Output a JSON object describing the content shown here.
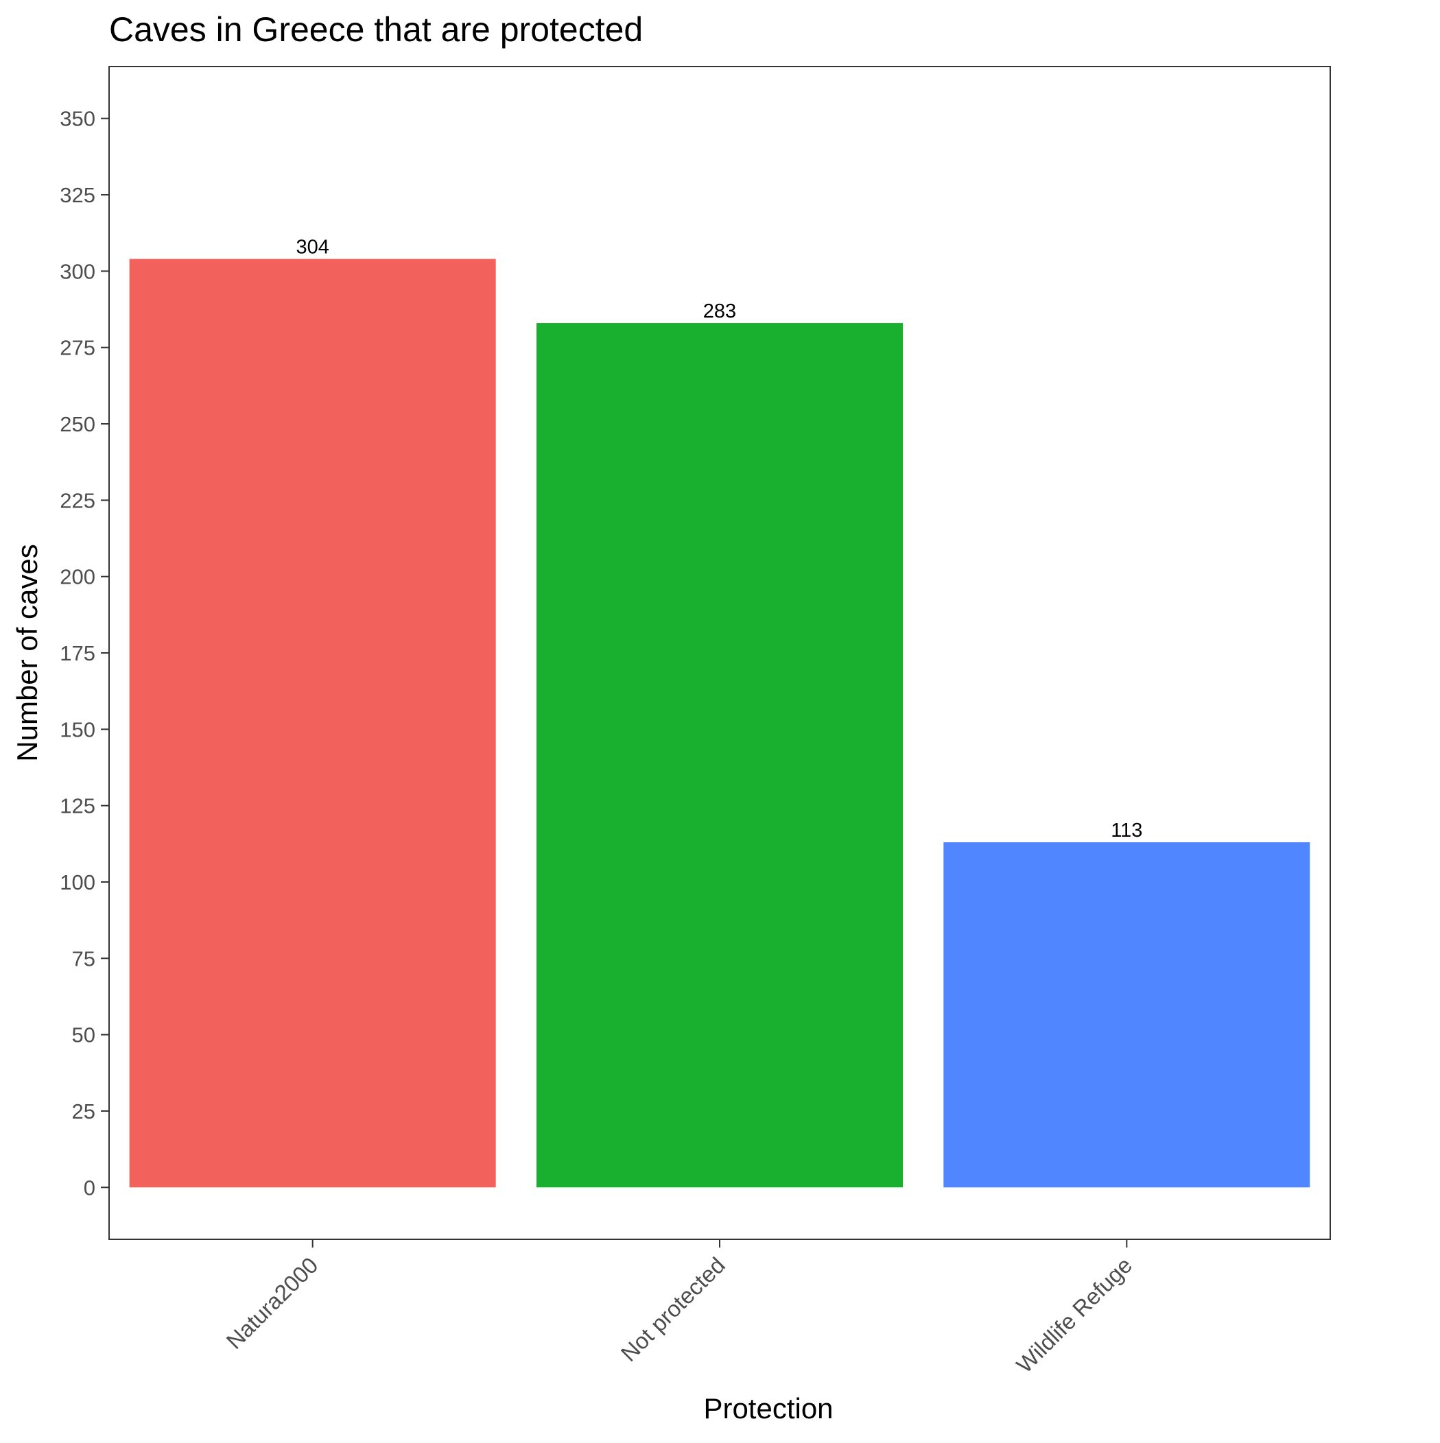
{
  "chart_data": {
    "type": "bar",
    "title": "Caves in Greece that are protected",
    "xlabel": "Protection",
    "ylabel": "Number of caves",
    "categories": [
      "Natura2000",
      "Not protected",
      "Wildlife Refuge"
    ],
    "values": [
      304,
      283,
      113
    ],
    "data_labels": [
      "304",
      "283",
      "113"
    ],
    "colors": [
      "#F2615C",
      "#19B02F",
      "#5086FF"
    ],
    "ylim": [
      -17,
      367
    ],
    "y_ticks": [
      0,
      25,
      50,
      75,
      100,
      125,
      150,
      175,
      200,
      225,
      250,
      275,
      300,
      325,
      350
    ],
    "y_tick_labels": [
      "0",
      "25",
      "50",
      "75",
      "100",
      "125",
      "150",
      "175",
      "200",
      "225",
      "250",
      "275",
      "300",
      "325",
      "350"
    ],
    "grid": false,
    "legend": "none",
    "x_tick_label_rotation": "45 degrees"
  }
}
